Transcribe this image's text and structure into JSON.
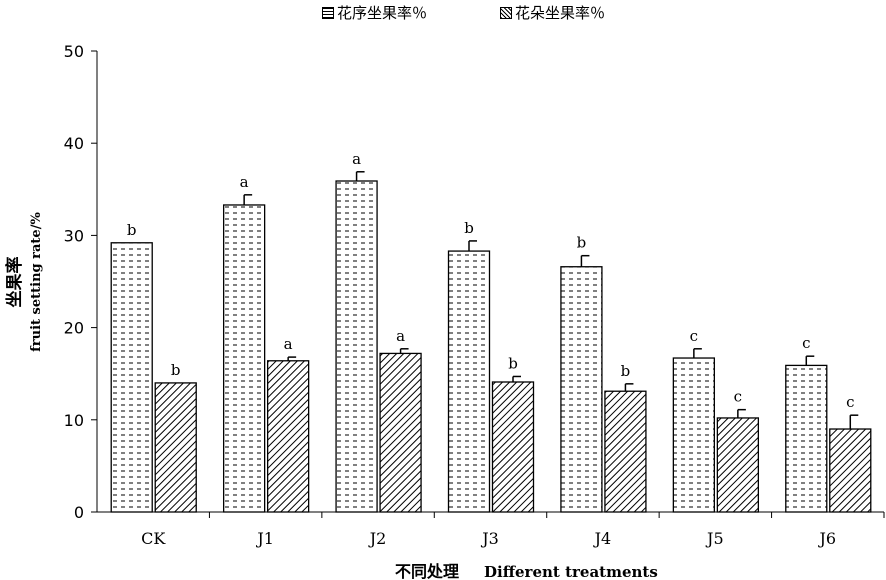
{
  "chart_data": {
    "type": "bar",
    "categories": [
      "CK",
      "J1",
      "J2",
      "J3",
      "J4",
      "J5",
      "J6"
    ],
    "series": [
      {
        "name": "花序坐果率％",
        "values": [
          29.2,
          33.3,
          35.9,
          28.3,
          26.6,
          16.7,
          15.9
        ],
        "errors": [
          0,
          1.1,
          1.0,
          1.1,
          1.2,
          1.0,
          1.0
        ],
        "letters": [
          "b",
          "a",
          "a",
          "b",
          "b",
          "c",
          "c"
        ]
      },
      {
        "name": "花朵坐果率％",
        "values": [
          14.0,
          16.4,
          17.2,
          14.1,
          13.1,
          10.2,
          9.0
        ],
        "errors": [
          0,
          0.4,
          0.5,
          0.6,
          0.8,
          0.9,
          1.5
        ],
        "letters": [
          "b",
          "a",
          "a",
          "b",
          "b",
          "c",
          "c"
        ]
      }
    ],
    "yticks": [
      "0",
      "10",
      "20",
      "30",
      "40",
      "50"
    ],
    "ylim": [
      0,
      50
    ],
    "ylabel_cn": "坐果率",
    "ylabel_en": "fruit setting rate/%",
    "xlabel_cn": "不同处理",
    "xlabel_en": "Different treatments",
    "legend_position": "top-center",
    "colors": {
      "axis": "#000000",
      "bar_fill": "#ffffff"
    }
  }
}
